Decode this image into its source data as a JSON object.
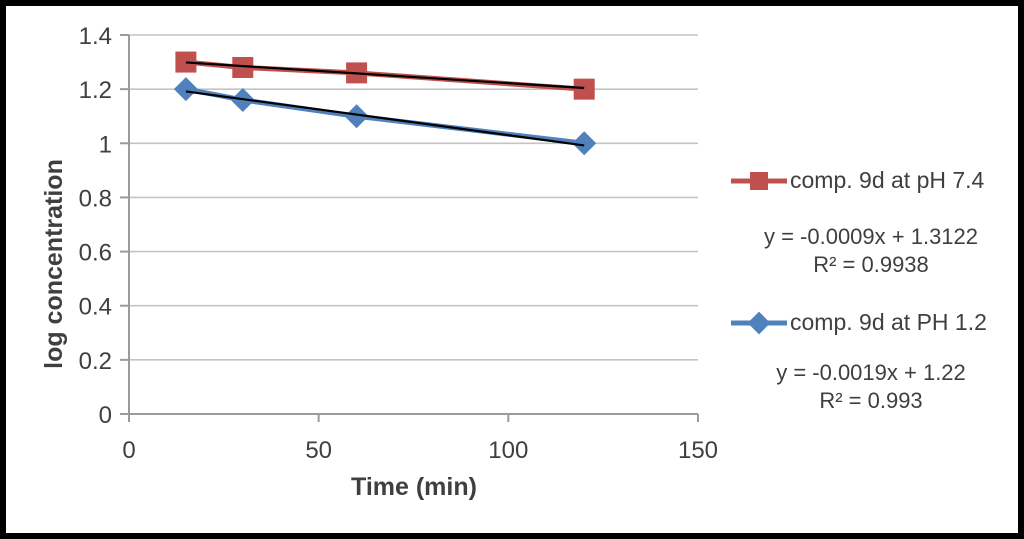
{
  "chart_data": {
    "type": "line",
    "title": "",
    "xlabel": "Time (min)",
    "ylabel": "log concentration",
    "x": [
      15,
      30,
      60,
      120
    ],
    "xlim": [
      0,
      150
    ],
    "ylim": [
      0,
      1.4
    ],
    "xticks": [
      0,
      50,
      100,
      150
    ],
    "ytick_labels": [
      "1.4",
      "1.2",
      "1",
      "0.8",
      "0.6",
      "0.4",
      "0.2",
      "0"
    ],
    "grid": "horizontal-major",
    "legend_position": "right",
    "series": [
      {
        "name": "comp. 9d at pH 7.4",
        "marker": "square",
        "color": "#C0504D",
        "values": [
          1.3,
          1.28,
          1.26,
          1.2
        ],
        "trendline": {
          "slope": -0.0009,
          "intercept": 1.3122,
          "equation": "y = -0.0009x + 1.3122",
          "r2": "R² = 0.9938"
        }
      },
      {
        "name": "comp. 9d at PH 1.2",
        "marker": "diamond",
        "color": "#4F81BD",
        "values": [
          1.2,
          1.16,
          1.1,
          1.0
        ],
        "trendline": {
          "slope": -0.0019,
          "intercept": 1.22,
          "equation": "y = -0.0019x + 1.22",
          "r2": "R² = 0.993"
        }
      }
    ],
    "colors": {
      "trendline": "#000000",
      "gridline": "#C4C4C4",
      "axis": "#9B9B9B",
      "text": "#3F3F3F",
      "frame_border": "#000000",
      "background": "#FFFFFF"
    }
  }
}
